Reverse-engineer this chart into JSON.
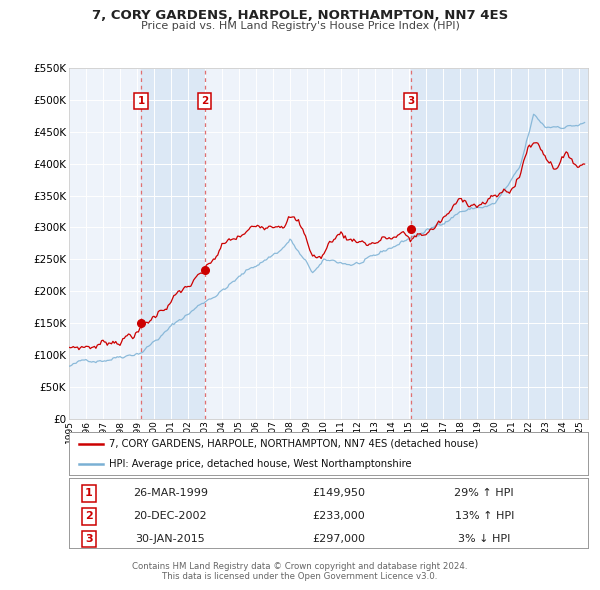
{
  "title": "7, CORY GARDENS, HARPOLE, NORTHAMPTON, NN7 4ES",
  "subtitle": "Price paid vs. HM Land Registry's House Price Index (HPI)",
  "legend_line1": "7, CORY GARDENS, HARPOLE, NORTHAMPTON, NN7 4ES (detached house)",
  "legend_line2": "HPI: Average price, detached house, West Northamptonshire",
  "transactions": [
    {
      "num": 1,
      "date": "26-MAR-1999",
      "price": 149950,
      "hpi_rel": "29% ↑ HPI",
      "year": 1999.23
    },
    {
      "num": 2,
      "date": "20-DEC-2002",
      "price": 233000,
      "hpi_rel": "13% ↑ HPI",
      "year": 2002.97
    },
    {
      "num": 3,
      "date": "30-JAN-2015",
      "price": 297000,
      "hpi_rel": "3% ↓ HPI",
      "year": 2015.08
    }
  ],
  "footer1": "Contains HM Land Registry data © Crown copyright and database right 2024.",
  "footer2": "This data is licensed under the Open Government Licence v3.0.",
  "ylim": [
    0,
    550000
  ],
  "xlim_start": 1995.0,
  "xlim_end": 2025.5,
  "bg_color": "#ffffff",
  "plot_bg_color": "#eef3fa",
  "grid_color": "#ffffff",
  "shade_color": "#dce8f5",
  "red_line_color": "#cc0000",
  "blue_line_color": "#7ab0d4",
  "transaction_dot_color": "#cc0000",
  "dashed_line_color": "#e07070",
  "box_color": "#cc0000"
}
